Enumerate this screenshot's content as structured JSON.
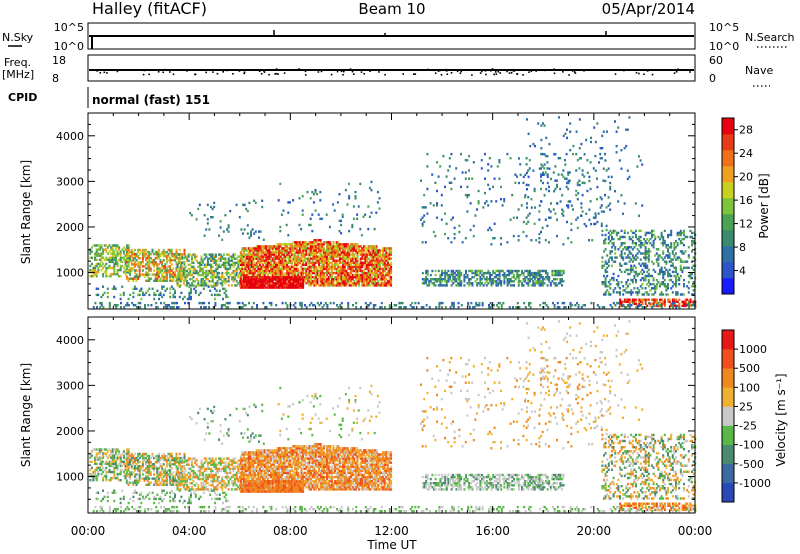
{
  "header": {
    "station": "Halley (fitACF)",
    "beam": "Beam 10",
    "date": "05/Apr/2014"
  },
  "strips": {
    "nsky_label": "N.Sky",
    "nsky_ticks": [
      "10^5",
      "10^0"
    ],
    "nsearch_label": "N.Search",
    "nsearch_ticks": [
      "10^5",
      "10^0"
    ],
    "freq_label_1": "Freq.",
    "freq_label_2": "[MHz]",
    "freq_ticks": [
      "18",
      "8"
    ],
    "nave_label": "Nave",
    "nave_ticks": [
      "60",
      "0"
    ],
    "cpid_label": "CPID",
    "cpid_value": "normal (fast) 151"
  },
  "chart_data": [
    {
      "type": "heatmap",
      "panel": "power",
      "ylabel": "Slant Range [km]",
      "xlabel": "Time UT",
      "x_tick_labels": [
        "00:00",
        "04:00",
        "08:00",
        "12:00",
        "16:00",
        "20:00",
        "00:00"
      ],
      "x_range_hours": [
        0,
        24
      ],
      "y_tick_labels": [
        "1000",
        "2000",
        "3000",
        "4000"
      ],
      "ylim": [
        200,
        4500
      ],
      "colorbar": {
        "label": "Power [dB]",
        "tick_labels": [
          "4",
          "8",
          "12",
          "16",
          "20",
          "24",
          "28"
        ],
        "range": [
          0,
          30
        ],
        "colors": [
          "#1a1aff",
          "#2b55c8",
          "#2e6fa8",
          "#3a8a6e",
          "#4aa355",
          "#7cc43a",
          "#c8d020",
          "#f0a020",
          "#f07018",
          "#e83c18",
          "#e80010"
        ]
      }
    },
    {
      "type": "heatmap",
      "panel": "velocity",
      "ylabel": "Slant Range [km]",
      "xlabel": "Time UT",
      "x_tick_labels": [
        "00:00",
        "04:00",
        "08:00",
        "12:00",
        "16:00",
        "20:00",
        "00:00"
      ],
      "x_range_hours": [
        0,
        24
      ],
      "y_tick_labels": [
        "1000",
        "2000",
        "3000",
        "4000"
      ],
      "ylim": [
        200,
        4500
      ],
      "colorbar": {
        "label": "Velocity [m s⁻¹]",
        "tick_labels": [
          "1000",
          "500",
          "100",
          "25",
          "-25",
          "-100",
          "-500",
          "-1000"
        ],
        "colors": [
          "#2848b8",
          "#3a6aa0",
          "#4a8a70",
          "#5ab848",
          "#c8c8c8",
          "#f0b030",
          "#f08820",
          "#f05020",
          "#e81818"
        ]
      }
    }
  ]
}
